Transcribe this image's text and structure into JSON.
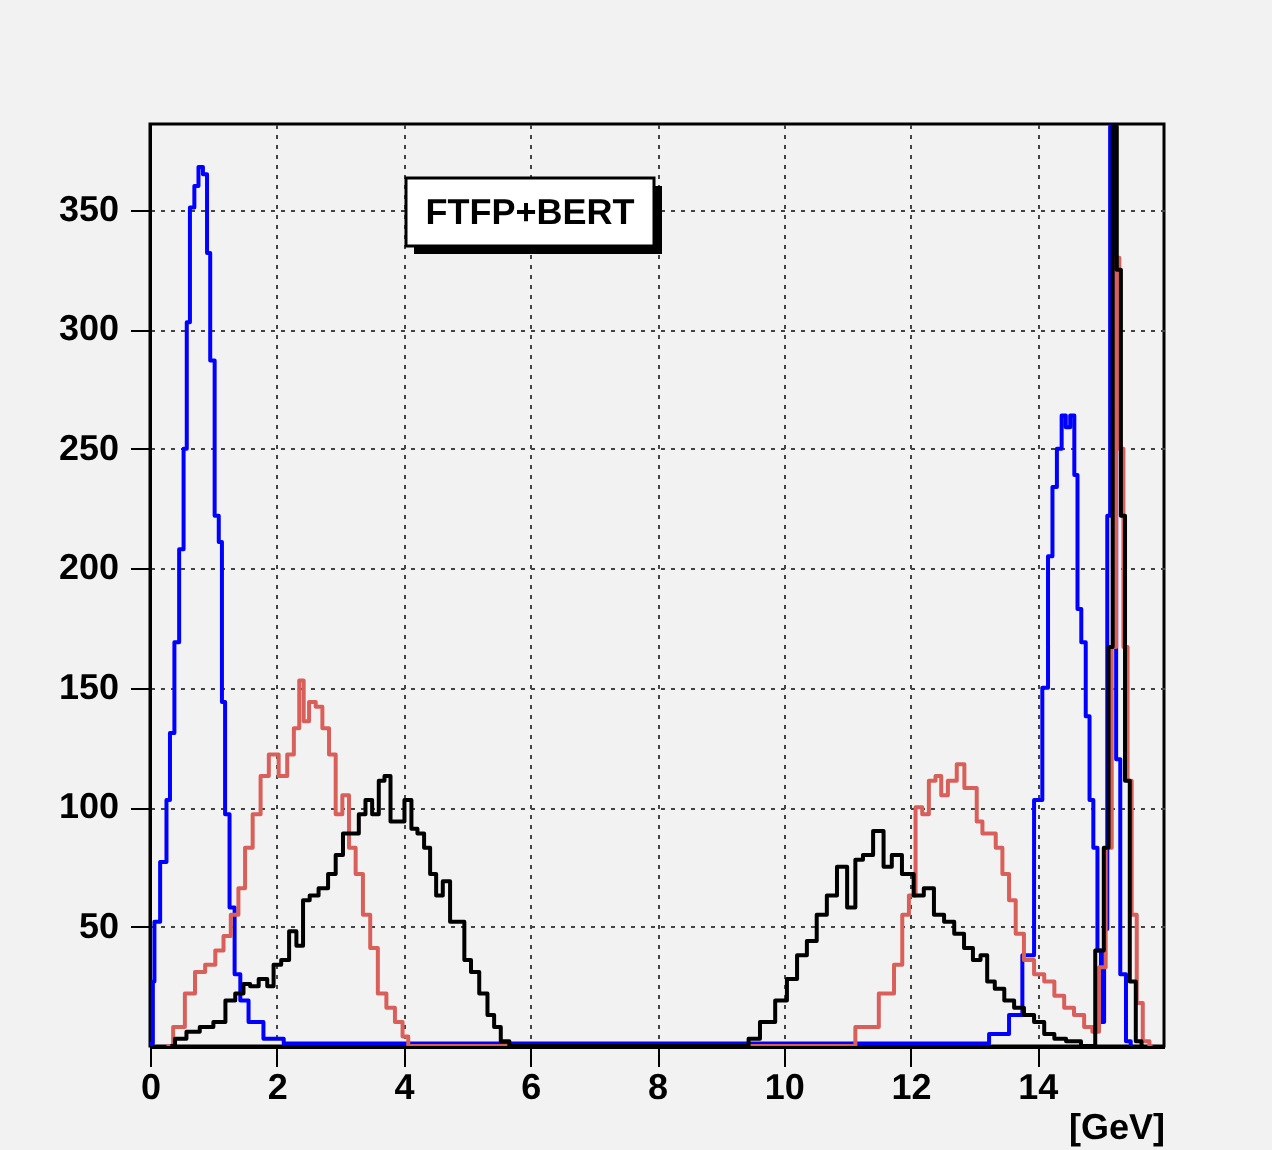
{
  "chart_data": {
    "type": "step",
    "xlabel": "[GeV]",
    "annotations": [
      "FTFP+BERT"
    ],
    "xlim": [
      0,
      16
    ],
    "ylim": [
      0,
      386
    ],
    "xticks": [
      0,
      2,
      4,
      6,
      8,
      10,
      12,
      14
    ],
    "yticks": [
      50,
      100,
      150,
      200,
      250,
      300,
      350
    ],
    "grid": true,
    "series": [
      {
        "color": "#0000ff",
        "x": [
          0,
          0.03,
          0.06,
          0.08,
          0.24,
          0.28,
          0.35,
          0.42,
          0.5,
          0.56,
          0.6,
          0.66,
          0.74,
          0.79,
          0.88,
          0.92,
          0.98,
          1.06,
          1.11,
          1.16,
          1.21,
          1.3,
          1.37,
          1.48,
          1.63,
          1.95,
          2.27,
          13.03,
          13.45,
          13.66,
          13.87,
          14.03,
          14.13,
          14.21,
          14.27,
          14.35,
          14.42,
          14.48,
          14.56,
          14.61,
          14.66,
          14.73,
          14.8,
          14.85,
          14.92,
          14.98,
          15.03,
          15.08,
          15.13,
          15.17,
          15.22,
          15.27,
          15.35,
          15.45,
          15.5
        ],
        "values": [
          0,
          1,
          27,
          52,
          77,
          103,
          131,
          169,
          208,
          250,
          303,
          351,
          360,
          368,
          365,
          332,
          287,
          222,
          211,
          144,
          97,
          58,
          30,
          19,
          10,
          3,
          1,
          1,
          5,
          13,
          38,
          103,
          150,
          205,
          234,
          250,
          264,
          259,
          264,
          239,
          183,
          169,
          138,
          103,
          83,
          40,
          10,
          49,
          222,
          385,
          300,
          120,
          30,
          2,
          0
        ]
      },
      {
        "color": "#d9605a",
        "x": [
          0.26,
          0.47,
          0.63,
          0.79,
          0.95,
          1.11,
          1.21,
          1.34,
          1.45,
          1.55,
          1.69,
          1.8,
          1.95,
          2.11,
          2.22,
          2.32,
          2.39,
          2.46,
          2.56,
          2.67,
          2.77,
          2.88,
          2.98,
          3.09,
          3.19,
          3.3,
          3.42,
          3.53,
          3.66,
          3.8,
          3.93,
          4.04,
          4.11,
          10.92,
          11.34,
          11.66,
          11.82,
          11.92,
          12.03,
          12.13,
          12.24,
          12.34,
          12.45,
          12.52,
          12.66,
          12.8,
          12.9,
          13.01,
          13.08,
          13.19,
          13.29,
          13.4,
          13.5,
          13.61,
          13.71,
          13.87,
          14.03,
          14.19,
          14.35,
          14.5,
          14.66,
          14.82,
          14.92,
          15.03,
          15.13,
          15.22,
          15.27,
          15.32,
          15.4,
          15.45,
          15.53,
          15.61,
          15.72,
          15.82
        ],
        "values": [
          0,
          8,
          22,
          31,
          34,
          40,
          46,
          55,
          66,
          83,
          97,
          113,
          122,
          113,
          122,
          133,
          153,
          136,
          144,
          142,
          133,
          122,
          97,
          105,
          83,
          72,
          55,
          41,
          22,
          16,
          10,
          4,
          0,
          0,
          8,
          22,
          34,
          55,
          63,
          100,
          97,
          111,
          113,
          105,
          111,
          118,
          108,
          108,
          94,
          89,
          89,
          83,
          72,
          61,
          47,
          36,
          30,
          27,
          21,
          16,
          13,
          8,
          6,
          33,
          83,
          167,
          330,
          250,
          167,
          111,
          55,
          18,
          2,
          0
        ]
      },
      {
        "color": "#000000",
        "x": [
          0.32,
          0.47,
          0.68,
          0.89,
          1.11,
          1.27,
          1.42,
          1.53,
          1.63,
          1.8,
          1.9,
          2.0,
          2.14,
          2.25,
          2.37,
          2.46,
          2.58,
          2.74,
          2.88,
          2.98,
          3.11,
          3.24,
          3.35,
          3.45,
          3.56,
          3.66,
          3.74,
          3.85,
          3.95,
          4.08,
          4.17,
          4.27,
          4.38,
          4.46,
          4.57,
          4.67,
          4.8,
          4.91,
          5.01,
          5.12,
          5.27,
          5.38,
          5.48,
          5.59,
          5.75,
          9.4,
          9.49,
          9.76,
          9.97,
          10.13,
          10.29,
          10.44,
          10.6,
          10.76,
          10.92,
          11.08,
          11.18,
          11.32,
          11.5,
          11.65,
          11.76,
          11.97,
          12.13,
          12.29,
          12.45,
          12.61,
          12.77,
          12.92,
          13.05,
          13.16,
          13.26,
          13.4,
          13.56,
          13.71,
          13.87,
          14.03,
          14.19,
          14.35,
          14.56,
          14.82,
          15.01,
          15.09,
          15.16,
          15.22,
          15.29,
          15.35,
          15.42,
          15.5,
          15.61,
          15.68
        ],
        "values": [
          0,
          3,
          6,
          8,
          10,
          19,
          22,
          26,
          25,
          28,
          25,
          34,
          36,
          48,
          42,
          61,
          63,
          66,
          72,
          80,
          89,
          89,
          97,
          103,
          97,
          111,
          113,
          94,
          94,
          103,
          91,
          89,
          83,
          72,
          63,
          69,
          52,
          52,
          36,
          31,
          22,
          13,
          8,
          2,
          0,
          0,
          3,
          10,
          19,
          28,
          38,
          44,
          55,
          63,
          75,
          58,
          78,
          80,
          90,
          75,
          80,
          72,
          63,
          66,
          55,
          52,
          47,
          41,
          36,
          38,
          27,
          24,
          19,
          16,
          13,
          10,
          5,
          3,
          2,
          0,
          40,
          83,
          167,
          385,
          325,
          222,
          111,
          27,
          2,
          0
        ]
      }
    ]
  }
}
